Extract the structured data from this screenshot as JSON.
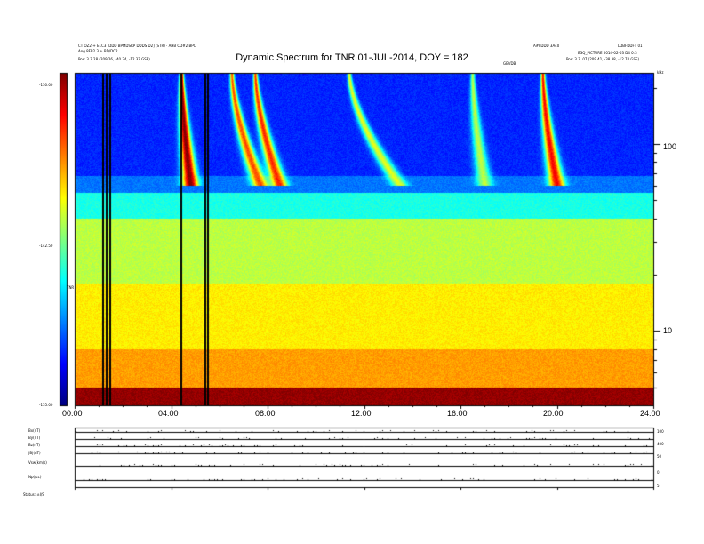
{
  "chart_data": {
    "type": "heatmap",
    "title": "Dynamic Spectrum for TNR 01-JUL-2014, DOY = 182",
    "header_left": [
      "CT OZ2-+ E1C3 [DDD BPMDSRP DDDS D2] (STR) · AHB CD#2 BPC",
      "Ang 8FB2 3 ± BD/DC2"
    ],
    "header_right": [
      "A#FDDD 3A40",
      "LDBFDDFT 01"
    ],
    "header_right2": "B3Q_PICTURE  0014-02-03 D4 0:3",
    "pos_start": "Pos:   3.7 28  (209.26, -40.34, -12.37 GSE)",
    "pos_end": "Pos:   3.7 .07  (209.41, -38.38, -12.70 GSE)",
    "mid_label": "GBVDB",
    "top_right_label": "kHz",
    "x_ticks": [
      "00:00",
      "04:00",
      "08:00",
      "12:00",
      "16:00",
      "20:00",
      "24:00"
    ],
    "x_range": [
      0,
      24
    ],
    "y_axis": "log frequency (kHz)",
    "y_ticks_right": [
      "100",
      "10"
    ],
    "y_ticks_right_values": [
      100,
      10
    ],
    "y_range_khz": [
      4,
      240
    ],
    "colorbar": {
      "labels": [
        "-130.00",
        "-142.50",
        "-155.00"
      ],
      "values": [
        -130,
        -142.5,
        -155
      ],
      "unit": "dB"
    },
    "colorbar_side_label": "TNR",
    "band_levels": [
      {
        "fmin": 4,
        "fmax": 5,
        "level": -130.5
      },
      {
        "fmin": 5,
        "fmax": 8,
        "level": -137
      },
      {
        "fmin": 8,
        "fmax": 18,
        "level": -139
      },
      {
        "fmin": 18,
        "fmax": 40,
        "level": -141
      },
      {
        "fmin": 40,
        "fmax": 55,
        "level": -145
      },
      {
        "fmin": 55,
        "fmax": 68,
        "level": -149
      },
      {
        "fmin": 68,
        "fmax": 240,
        "level": -151
      }
    ],
    "type_iii_bursts": [
      {
        "t_start": 4.35,
        "t_end": 4.8,
        "level": -130
      },
      {
        "t_start": 6.3,
        "t_end": 7.7,
        "level": -135
      },
      {
        "t_start": 7.3,
        "t_end": 8.5,
        "level": -134
      },
      {
        "t_start": 11.0,
        "t_end": 13.5,
        "level": -140
      },
      {
        "t_start": 16.4,
        "t_end": 17.0,
        "level": -141
      },
      {
        "t_start": 19.3,
        "t_end": 20.0,
        "level": -133
      }
    ],
    "data_gaps_hours": [
      1.15,
      1.3,
      1.42,
      4.4,
      5.4,
      5.5
    ],
    "bottom_panel": {
      "traces": [
        "Bx(nT)",
        "By(nT)",
        "Bz(nT)",
        "|B|(nT)",
        "Vsw(km/s)",
        "Np(/cc)"
      ],
      "extra_label": "Status: ±I/S",
      "right_ticks": [
        "100",
        "400",
        "50",
        "0",
        "5"
      ]
    }
  }
}
